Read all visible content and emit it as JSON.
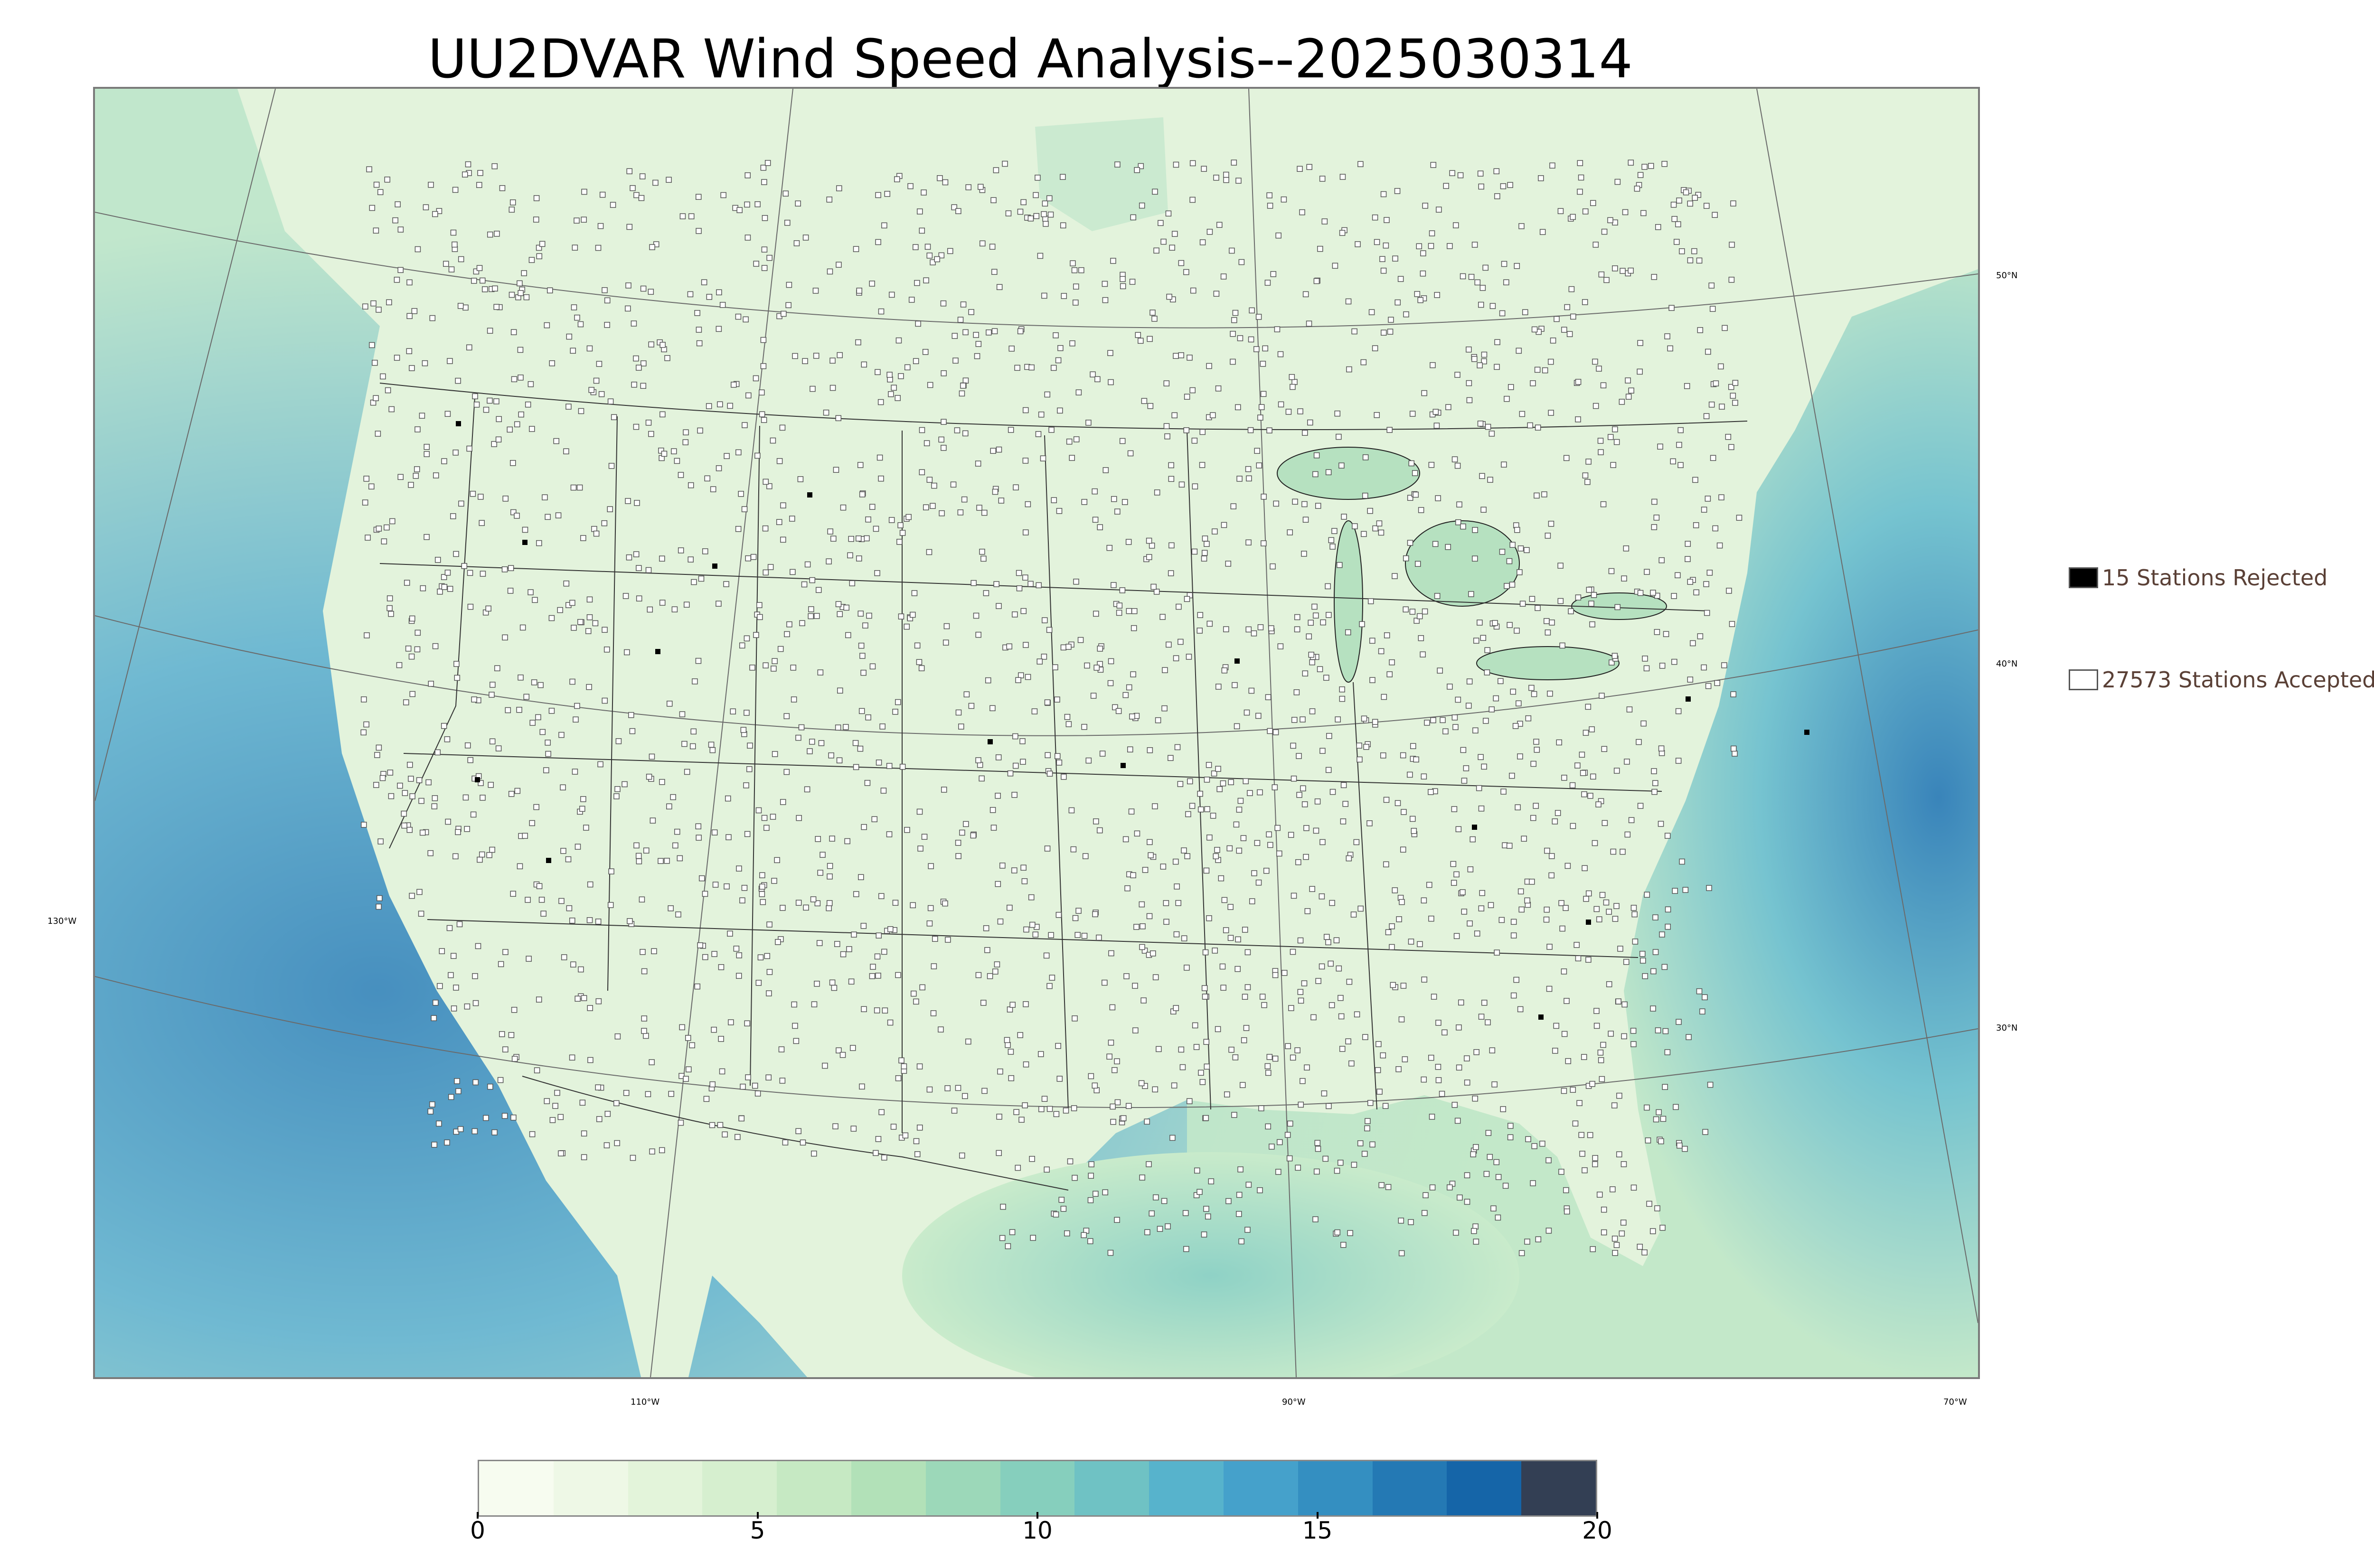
{
  "title": "UU2DVAR Wind Speed Analysis--2025030314",
  "map": {
    "lat_labels": [
      "50°N",
      "40°N",
      "30°N",
      "130°W"
    ],
    "lon_labels": [
      "110°W",
      "90°W",
      "70°W"
    ],
    "ocean_color": "#5aa8d2",
    "land_color": "#e4f3df",
    "accepted_marker_color": "#ffffff",
    "rejected_marker_color": "#000000"
  },
  "legend": {
    "rejected": {
      "label": "15 Stations Rejected",
      "swatch": "#000000"
    },
    "accepted": {
      "label": "27573 Stations Accepted",
      "swatch": "#ffffff"
    }
  },
  "colorbar": {
    "ticks": [
      "0",
      "5",
      "10",
      "15",
      "20"
    ],
    "min": 0,
    "max": 20,
    "colors": [
      "#f7fcf0",
      "#eef8e6",
      "#e3f4da",
      "#d6efcf",
      "#c6e9c3",
      "#b2e1b8",
      "#9cd8b9",
      "#86cfbd",
      "#6fc2c4",
      "#57b3cc",
      "#45a1cb",
      "#348fc1",
      "#2479b4",
      "#1565a8",
      "#333f54"
    ]
  },
  "chart_data": {
    "type": "heatmap",
    "title": "UU2DVAR Wind Speed Analysis--2025030314",
    "colorbar_range": [
      0,
      20
    ],
    "colorbar_ticks": [
      0,
      5,
      10,
      15,
      20
    ],
    "legend": [
      "15 Stations Rejected",
      "27573 Stations Accepted"
    ],
    "stations_rejected": 15,
    "stations_accepted": 27573
  }
}
